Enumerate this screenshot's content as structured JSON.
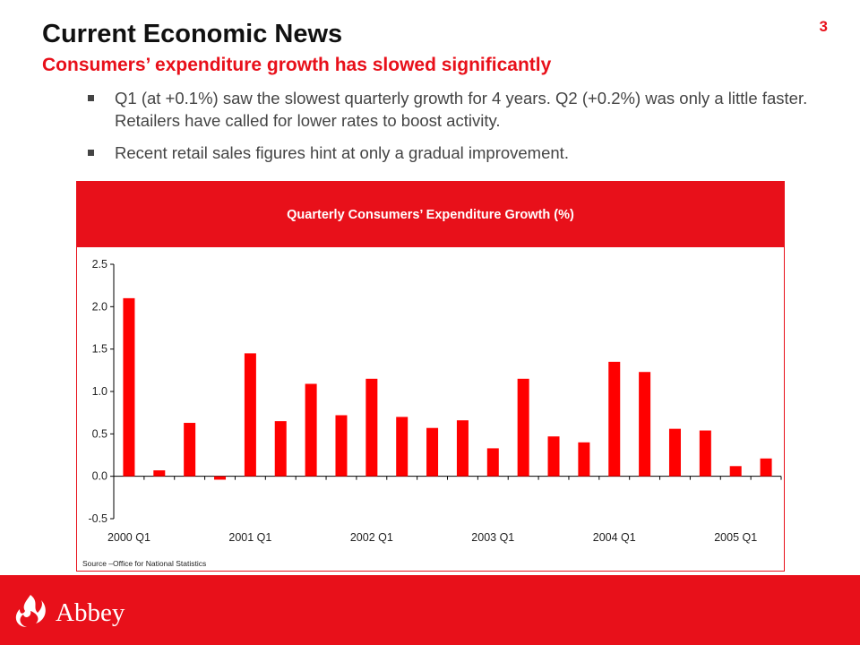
{
  "page_number": "3",
  "title": "Current Economic News",
  "subtitle": "Consumers’ expenditure growth has slowed significantly",
  "bullets": [
    "Q1 (at +0.1%) saw the slowest quarterly growth for 4 years.  Q2 (+0.2%) was only a little faster.  Retailers have called for lower rates to boost activity.",
    "Recent retail sales figures hint at only a gradual improvement."
  ],
  "chart": {
    "source": "Source –Office for National Statistics"
  },
  "chart_data": {
    "type": "bar",
    "title": "Quarterly Consumers’ Expenditure Growth (%)",
    "xlabel": "",
    "ylabel": "",
    "ylim": [
      -0.5,
      2.5
    ],
    "yticks": [
      "2.5",
      "2.0",
      "1.5",
      "1.0",
      "0.5",
      "0.0",
      "-0.5"
    ],
    "ytick_values": [
      2.5,
      2.0,
      1.5,
      1.0,
      0.5,
      0.0,
      -0.5
    ],
    "categories": [
      "2000 Q1",
      "2000 Q2",
      "2000 Q3",
      "2000 Q4",
      "2001 Q1",
      "2001 Q2",
      "2001 Q3",
      "2001 Q4",
      "2002 Q1",
      "2002 Q2",
      "2002 Q3",
      "2002 Q4",
      "2003 Q1",
      "2003 Q2",
      "2003 Q3",
      "2003 Q4",
      "2004 Q1",
      "2004 Q2",
      "2004 Q3",
      "2004 Q4",
      "2005 Q1",
      "2005 Q2"
    ],
    "xtick_labels": [
      "2000 Q1",
      "2001 Q1",
      "2002 Q1",
      "2003 Q1",
      "2004 Q1",
      "2005 Q1"
    ],
    "values": [
      2.1,
      0.07,
      0.63,
      -0.04,
      1.45,
      0.65,
      1.09,
      0.72,
      1.15,
      0.7,
      0.57,
      0.66,
      0.33,
      1.15,
      0.47,
      0.4,
      1.35,
      1.23,
      0.56,
      0.54,
      0.12,
      0.21
    ],
    "bar_color": "#ff0000",
    "grid": false,
    "legend": "none"
  },
  "brand": {
    "name": "Abbey",
    "accent_color": "#e8101a",
    "logo_icon": "flame-icon"
  }
}
